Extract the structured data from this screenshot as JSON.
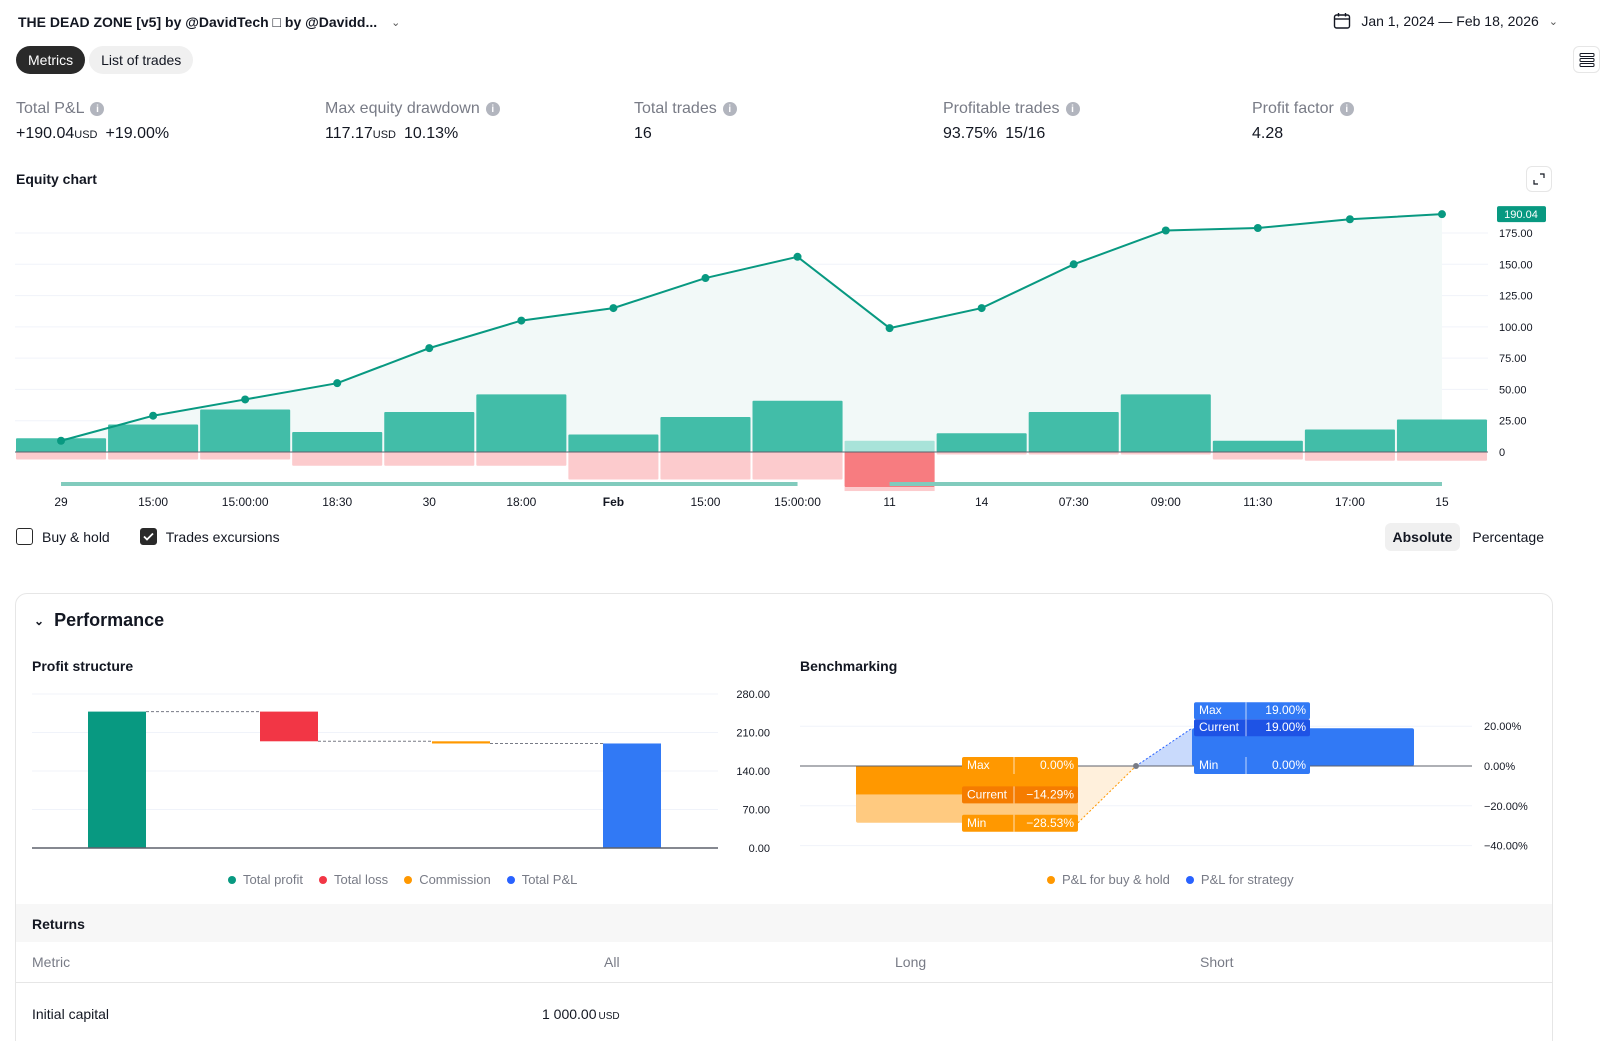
{
  "header": {
    "title": "THE DEAD ZONE [v5] by @DavidTech □ by @Davidd...",
    "date_range": "Jan 1, 2024 — Feb 18, 2026",
    "icons": {
      "title_dropdown": "chevron-down-icon",
      "calendar": "calendar-icon",
      "menu": "menu-icon"
    }
  },
  "tabs": [
    {
      "label": "Metrics",
      "active": true
    },
    {
      "label": "List of trades",
      "active": false
    }
  ],
  "metrics": [
    {
      "label": "Total P&L",
      "value": "+190.04",
      "unit": "USD",
      "extra": "+19.00%",
      "positive": true
    },
    {
      "label": "Max equity drawdown",
      "value": "117.17",
      "unit": "USD",
      "extra": "10.13%",
      "positive": false
    },
    {
      "label": "Total trades",
      "value": "16",
      "unit": "",
      "extra": "",
      "positive": false
    },
    {
      "label": "Profitable trades",
      "value": "93.75%",
      "unit": "",
      "extra": "15/16",
      "positive": false
    },
    {
      "label": "Profit factor",
      "value": "4.28",
      "unit": "",
      "extra": "",
      "positive": false
    }
  ],
  "equity": {
    "title": "Equity chart",
    "last_value_label": "190.04",
    "options": {
      "buy_hold_label": "Buy & hold",
      "buy_hold_checked": false,
      "excursions_label": "Trades excursions",
      "excursions_checked": true
    },
    "modes": [
      {
        "label": "Absolute",
        "active": true
      },
      {
        "label": "Percentage",
        "active": false
      }
    ]
  },
  "colors": {
    "green": "#089981",
    "green_bar": "#42bda8",
    "green_light": "#a8e3d9",
    "area": "#f2f9f8",
    "pink": "#fccbcd",
    "red_strong": "#f77c80",
    "red": "#f23645",
    "orange": "#ff9800",
    "blue": "#2962ff",
    "blue_bar": "#3179f5"
  },
  "chart_data": [
    {
      "type": "line",
      "title": "Equity chart",
      "x": [
        "29",
        "15:00",
        "15:00:00",
        "18:30",
        "30",
        "18:00",
        "Feb",
        "15:00",
        "15:00:00",
        "11",
        "14",
        "07:30",
        "09:00",
        "11:30",
        "17:00",
        "15"
      ],
      "bold_ticks": [
        "Feb"
      ],
      "yticks": [
        "0",
        "25.00",
        "50.00",
        "75.00",
        "100.00",
        "125.00",
        "150.00",
        "175.00"
      ],
      "ylim": [
        -30,
        190
      ],
      "series": [
        {
          "name": "Equity",
          "kind": "line",
          "values": [
            9,
            29,
            42,
            55,
            83,
            105,
            115,
            139,
            156,
            99,
            115,
            150,
            177,
            179,
            186,
            190.04
          ]
        },
        {
          "name": "Run-up",
          "kind": "bar",
          "values": [
            11,
            22,
            34,
            16,
            32,
            46,
            14,
            28,
            41,
            9,
            15,
            32,
            46,
            9,
            18,
            26
          ]
        },
        {
          "name": "Drawdown",
          "kind": "bar",
          "values": [
            -6,
            -6,
            -6,
            -11,
            -11,
            -11,
            -22,
            -22,
            -22,
            -28,
            -2,
            -2,
            -2,
            -6,
            -7,
            -7
          ]
        }
      ],
      "losing_trade_index": 9,
      "grid": true
    },
    {
      "type": "bar",
      "title": "Profit structure",
      "subtype": "waterfall",
      "categories": [
        "Total profit",
        "Total loss",
        "Commission",
        "Total P&L"
      ],
      "values": [
        248.0,
        -54.0,
        -4.0,
        190.04
      ],
      "yticks": [
        "0.00",
        "70.00",
        "140.00",
        "210.00",
        "280.00"
      ],
      "ylim": [
        0,
        280
      ],
      "legend": "bottom"
    },
    {
      "type": "bar",
      "title": "Benchmarking",
      "categories": [
        "P&L for buy & hold",
        "P&L for strategy"
      ],
      "series": [
        {
          "name": "P&L for buy & hold",
          "max": "0.00%",
          "current": "−14.29%",
          "min": "−28.53%",
          "max_v": 0,
          "current_v": -14.29,
          "min_v": -28.53
        },
        {
          "name": "P&L for strategy",
          "max": "19.00%",
          "current": "19.00%",
          "min": "0.00%",
          "max_v": 19.0,
          "current_v": 19.0,
          "min_v": 0
        }
      ],
      "labels": {
        "max": "Max",
        "current": "Current",
        "min": "Min"
      },
      "yticks": [
        "−40.00%",
        "−20.00%",
        "0.00%",
        "20.00%"
      ],
      "ylim": [
        -40,
        20
      ],
      "legend": "bottom"
    }
  ],
  "performance": {
    "title": "Performance",
    "profit_title": "Profit structure",
    "bench_title": "Benchmarking",
    "returns_title": "Returns",
    "table_headers": [
      "Metric",
      "All",
      "Long",
      "Short"
    ],
    "rows": [
      {
        "metric": "Initial capital",
        "all": "1 000.00",
        "all_unit": "USD",
        "long": "",
        "short": ""
      }
    ]
  }
}
